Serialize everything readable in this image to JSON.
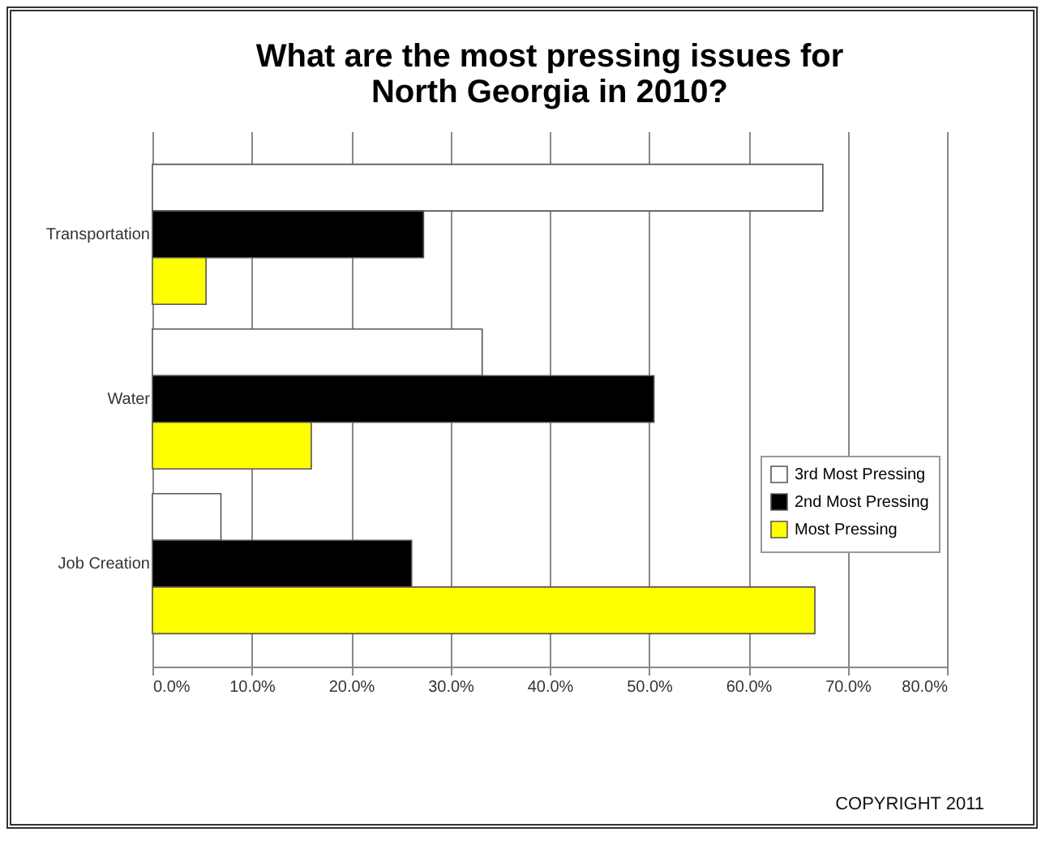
{
  "chart_data": {
    "type": "bar",
    "orientation": "horizontal",
    "title": "What are the most pressing issues for North Georgia in 2010?",
    "categories": [
      "Transportation",
      "Water",
      "Job Creation"
    ],
    "series": [
      {
        "name": "3rd Most Pressing",
        "color": "#ffffff",
        "values": [
          67.5,
          33.2,
          6.9
        ]
      },
      {
        "name": "2nd Most Pressing",
        "color": "#000000",
        "values": [
          27.3,
          50.5,
          26.1
        ]
      },
      {
        "name": "Most Pressing",
        "color": "#ffff00",
        "values": [
          5.4,
          16.0,
          66.7
        ]
      }
    ],
    "xlim": [
      0,
      80
    ],
    "xticks": [
      {
        "value": 0,
        "label": "0.0%"
      },
      {
        "value": 10,
        "label": "10.0%"
      },
      {
        "value": 20,
        "label": "20.0%"
      },
      {
        "value": 30,
        "label": "30.0%"
      },
      {
        "value": 40,
        "label": "40.0%"
      },
      {
        "value": 50,
        "label": "50.0%"
      },
      {
        "value": 60,
        "label": "60.0%"
      },
      {
        "value": 70,
        "label": "70.0%"
      },
      {
        "value": 80,
        "label": "80.0%"
      }
    ],
    "grid": "x",
    "legend": "right",
    "annotations": [
      "COPYRIGHT 2011"
    ]
  }
}
